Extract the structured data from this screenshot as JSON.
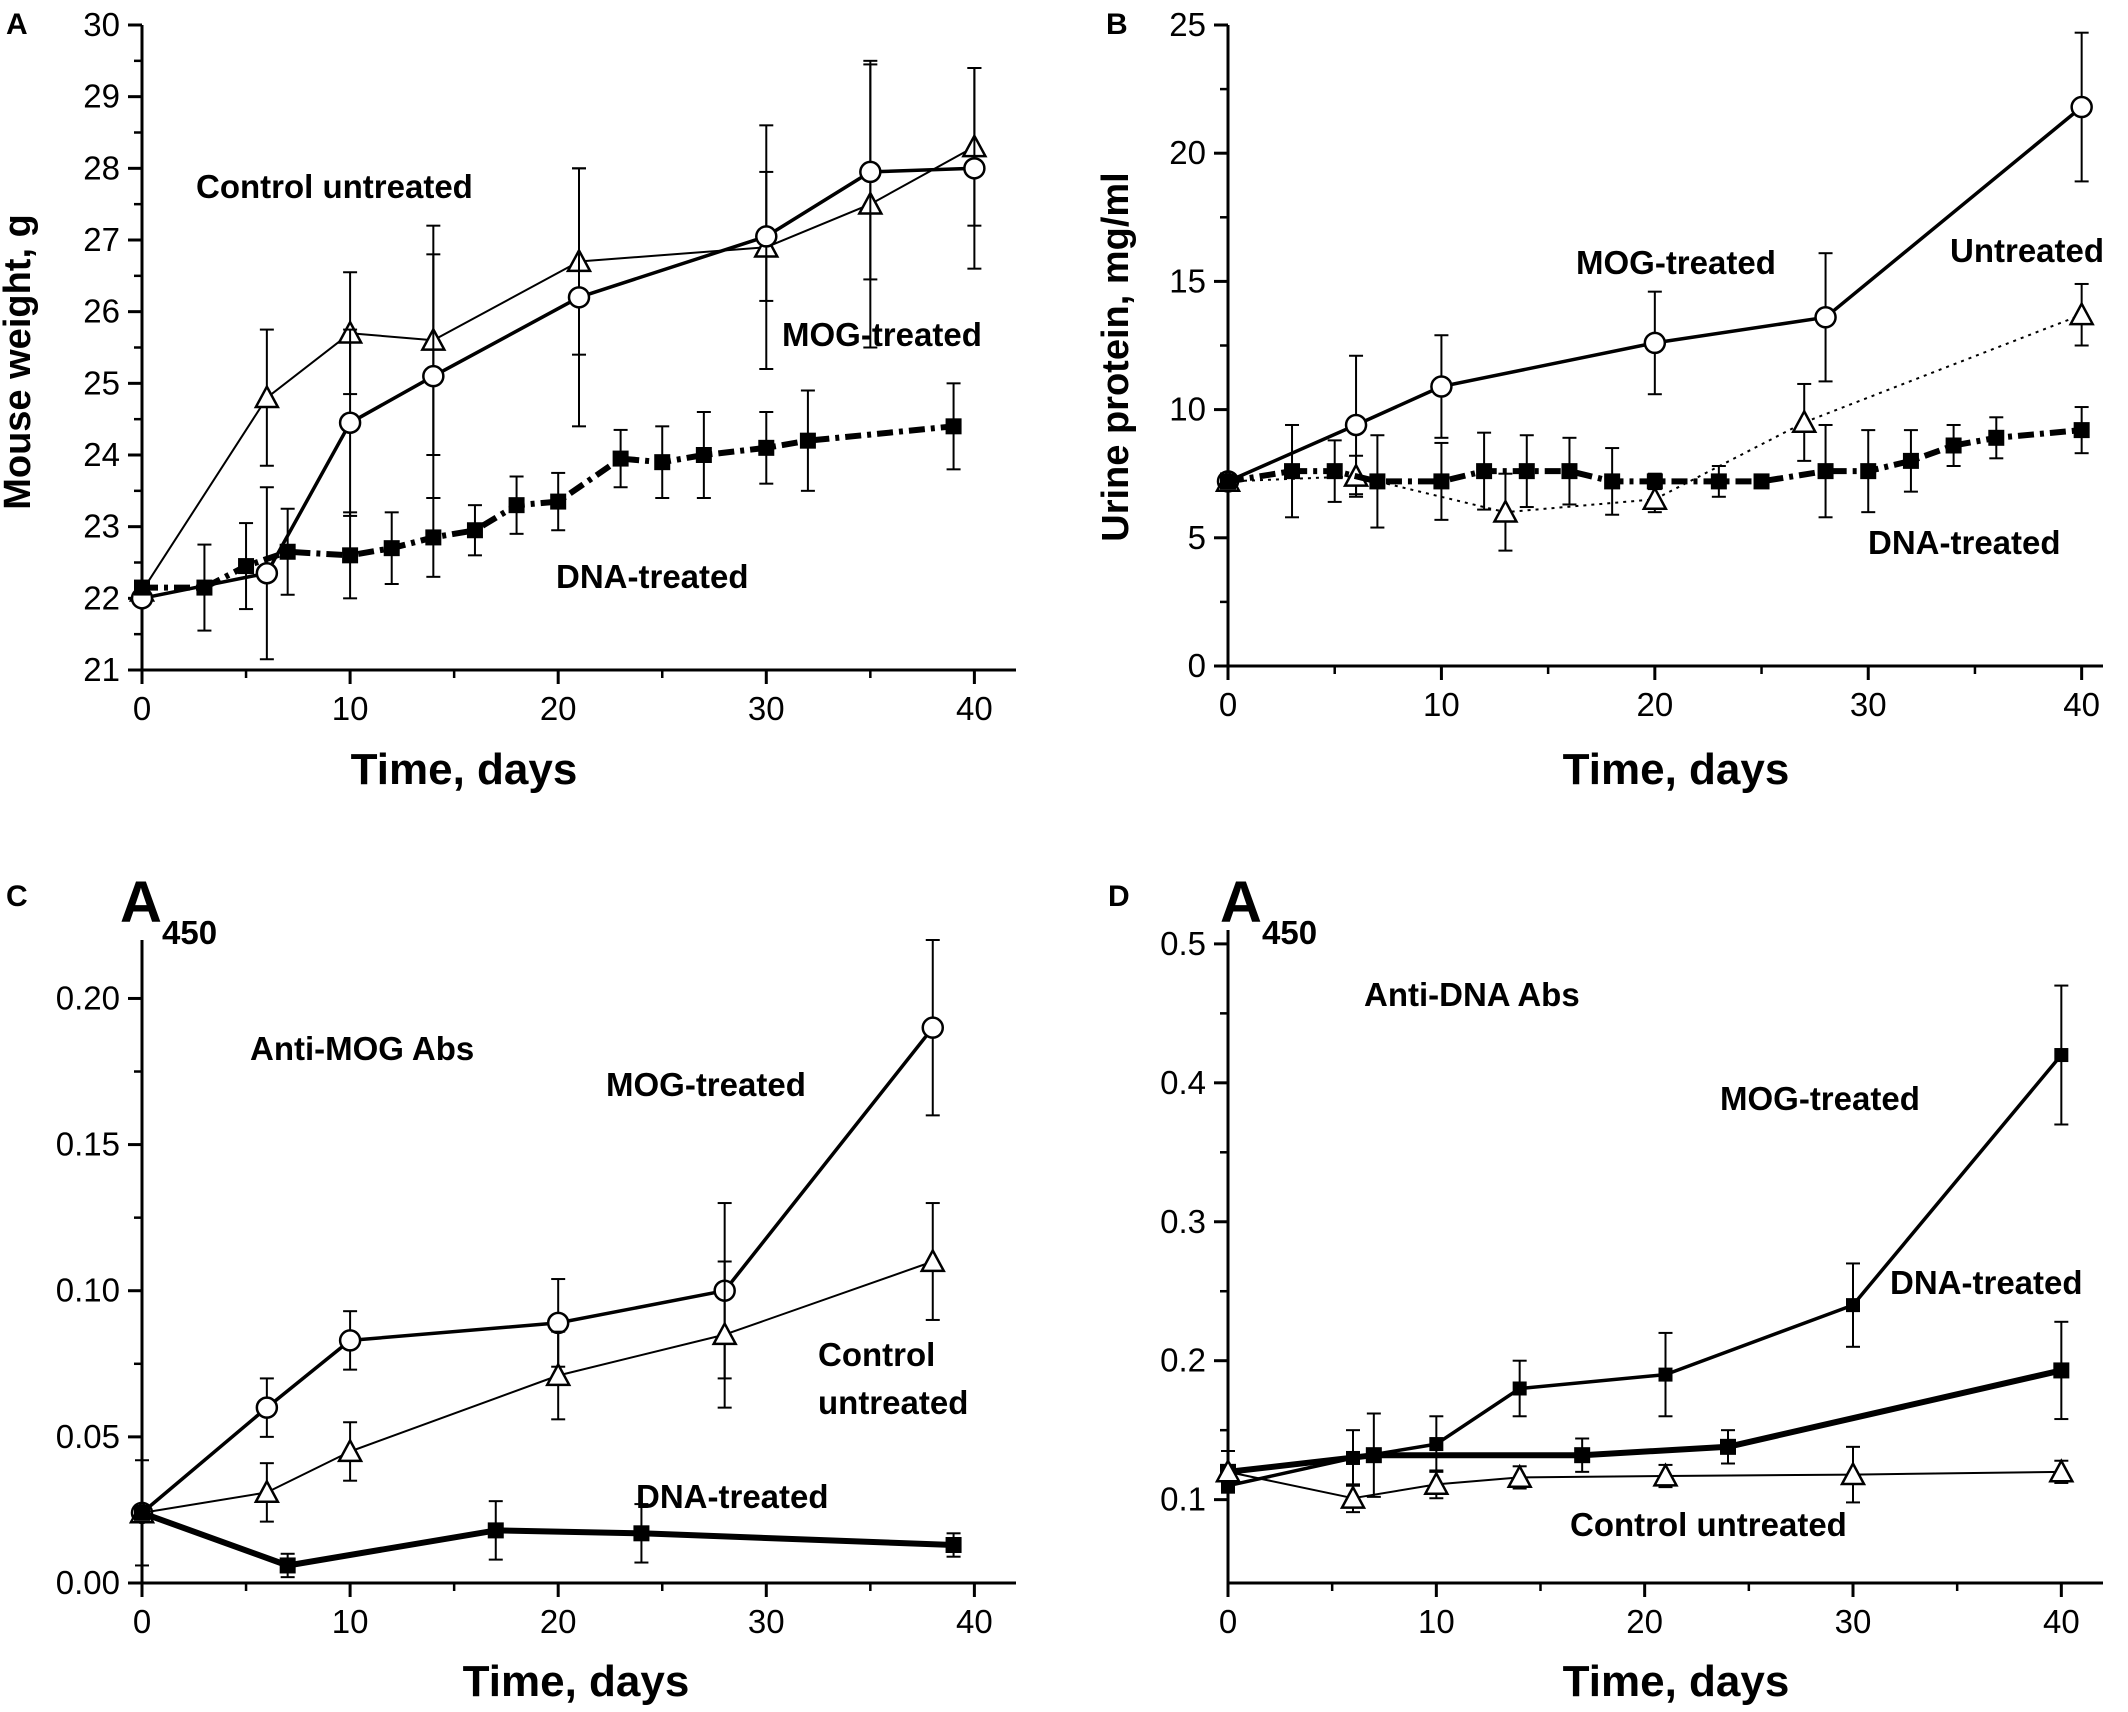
{
  "chart_data": [
    {
      "type": "line",
      "panel": "A",
      "ylabel": "Mouse weight, g",
      "xlabel": "Time, days",
      "xlim": [
        0,
        42
      ],
      "ylim": [
        21,
        30
      ],
      "xticks": [
        0,
        10,
        20,
        30,
        40
      ],
      "yticks": [
        21,
        22,
        23,
        24,
        25,
        26,
        27,
        28,
        29,
        30
      ],
      "series": [
        {
          "name": "Control untreated",
          "marker": "triangle",
          "line": "thin",
          "x": [
            0,
            6,
            10,
            14,
            21,
            30,
            35,
            40
          ],
          "y": [
            22.1,
            24.8,
            25.7,
            25.6,
            26.7,
            26.9,
            27.5,
            28.3
          ],
          "err": [
            0,
            0.95,
            0.85,
            1.6,
            1.3,
            1.7,
            2.0,
            1.1
          ]
        },
        {
          "name": "MOG-treated",
          "marker": "circle",
          "line": "medium",
          "x": [
            0,
            6,
            10,
            14,
            21,
            30,
            35,
            40
          ],
          "y": [
            22.0,
            22.35,
            24.45,
            25.1,
            26.2,
            27.05,
            27.95,
            28.0
          ],
          "err": [
            0,
            1.2,
            1.3,
            1.7,
            1.8,
            0.9,
            1.5,
            1.4
          ]
        },
        {
          "name": "DNA-treated",
          "marker": "square",
          "line": "bold-dash",
          "x": [
            0,
            3,
            5,
            7,
            10,
            12,
            14,
            16,
            18,
            20,
            23,
            25,
            27,
            30,
            32,
            39
          ],
          "y": [
            22.15,
            22.15,
            22.45,
            22.65,
            22.6,
            22.7,
            22.85,
            22.95,
            23.3,
            23.35,
            23.95,
            23.9,
            24.0,
            24.1,
            24.2,
            24.4
          ],
          "err": [
            0,
            0.6,
            0.6,
            0.6,
            0.6,
            0.5,
            0.55,
            0.35,
            0.4,
            0.4,
            0.4,
            0.5,
            0.6,
            0.5,
            0.7,
            0.6
          ]
        }
      ],
      "annotations": [
        "Control untreated",
        "MOG-treated",
        "DNA-treated"
      ]
    },
    {
      "type": "line",
      "panel": "B",
      "ylabel": "Urine protein, mg/ml",
      "xlabel": "Time, days",
      "xlim": [
        0,
        41
      ],
      "ylim": [
        0,
        25
      ],
      "xticks": [
        0,
        10,
        20,
        30,
        40
      ],
      "yticks": [
        0,
        5,
        10,
        15,
        20,
        25
      ],
      "series": [
        {
          "name": "MOG-treated",
          "marker": "circle",
          "line": "medium",
          "x": [
            0,
            6,
            10,
            20,
            28,
            40
          ],
          "y": [
            7.2,
            9.4,
            10.9,
            12.6,
            13.6,
            21.8
          ],
          "err": [
            0,
            2.7,
            2.0,
            2.0,
            2.5,
            2.9
          ]
        },
        {
          "name": "Untreated",
          "marker": "triangle",
          "line": "dotted",
          "x": [
            0,
            6,
            13,
            20,
            27,
            40
          ],
          "y": [
            7.2,
            7.4,
            6.0,
            6.5,
            9.5,
            13.7
          ],
          "err": [
            0,
            0.8,
            1.5,
            0.5,
            1.5,
            1.2
          ]
        },
        {
          "name": "DNA-treated",
          "marker": "square",
          "line": "bold-dash",
          "x": [
            0,
            3,
            5,
            7,
            10,
            12,
            14,
            16,
            18,
            20,
            23,
            25,
            28,
            30,
            32,
            34,
            36,
            40
          ],
          "y": [
            7.2,
            7.6,
            7.6,
            7.2,
            7.2,
            7.6,
            7.6,
            7.6,
            7.2,
            7.2,
            7.2,
            7.2,
            7.6,
            7.6,
            8.0,
            8.6,
            8.9,
            9.2
          ],
          "err": [
            0,
            1.8,
            1.2,
            1.8,
            1.5,
            1.5,
            1.4,
            1.3,
            1.3,
            0.3,
            0.6,
            0.2,
            1.8,
            1.6,
            1.2,
            0.8,
            0.8,
            0.9
          ]
        }
      ],
      "annotations": [
        "MOG-treated",
        "Untreated",
        "DNA-treated"
      ]
    },
    {
      "type": "line",
      "panel": "C",
      "ylabel_main": "A",
      "ylabel_sub": "450",
      "xlabel": "Time, days",
      "xlim": [
        0,
        42
      ],
      "ylim": [
        0,
        0.22
      ],
      "xticks": [
        0,
        10,
        20,
        30,
        40
      ],
      "yticks": [
        0.0,
        0.05,
        0.1,
        0.15,
        0.2
      ],
      "ytick_labels": [
        "0.00",
        "0.05",
        "0.10",
        "0.15",
        "0.20"
      ],
      "series": [
        {
          "name": "MOG-treated",
          "marker": "circle",
          "line": "medium",
          "x": [
            0,
            6,
            10,
            20,
            28,
            38
          ],
          "y": [
            0.024,
            0.06,
            0.083,
            0.089,
            0.1,
            0.19
          ],
          "err": [
            0.018,
            0.01,
            0.01,
            0.015,
            0.03,
            0.03
          ]
        },
        {
          "name": "Control untreated",
          "marker": "triangle",
          "line": "thin",
          "x": [
            0,
            6,
            10,
            20,
            28,
            38
          ],
          "y": [
            0.024,
            0.031,
            0.045,
            0.071,
            0.085,
            0.11
          ],
          "err": [
            0,
            0.01,
            0.01,
            0.015,
            0.025,
            0.02
          ]
        },
        {
          "name": "DNA-treated",
          "marker": "square",
          "line": "bold",
          "x": [
            0,
            7,
            17,
            24,
            39
          ],
          "y": [
            0.024,
            0.006,
            0.018,
            0.017,
            0.013
          ],
          "err": [
            0,
            0.004,
            0.01,
            0.01,
            0.004
          ]
        }
      ],
      "annotations": [
        "Anti-MOG Abs",
        "MOG-treated",
        "Control",
        "untreated",
        "DNA-treated"
      ]
    },
    {
      "type": "line",
      "panel": "D",
      "ylabel_main": "A",
      "ylabel_sub": "450",
      "xlabel": "Time, days",
      "xlim": [
        0,
        42
      ],
      "ylim": [
        0.04,
        0.51
      ],
      "xticks": [
        0,
        10,
        20,
        30,
        40
      ],
      "yticks": [
        0.1,
        0.2,
        0.3,
        0.4,
        0.5
      ],
      "ytick_labels": [
        "0.1",
        "0.2",
        "0.3",
        "0.4",
        "0.5"
      ],
      "series": [
        {
          "name": "MOG-treated",
          "marker": "square-small",
          "line": "medium",
          "x": [
            0,
            6,
            10,
            14,
            21,
            30,
            40
          ],
          "y": [
            0.11,
            0.13,
            0.14,
            0.18,
            0.19,
            0.24,
            0.42
          ],
          "err": [
            0,
            0.02,
            0.02,
            0.02,
            0.03,
            0.03,
            0.05
          ]
        },
        {
          "name": "DNA-treated",
          "marker": "square",
          "line": "bold",
          "x": [
            0,
            7,
            17,
            24,
            40
          ],
          "y": [
            0.12,
            0.132,
            0.132,
            0.138,
            0.193
          ],
          "err": [
            0,
            0.03,
            0.012,
            0.012,
            0.035
          ]
        },
        {
          "name": "Control untreated",
          "marker": "triangle",
          "line": "thin",
          "x": [
            0,
            6,
            10,
            14,
            21,
            30,
            40
          ],
          "y": [
            0.12,
            0.101,
            0.111,
            0.116,
            0.117,
            0.118,
            0.12
          ],
          "err": [
            0.015,
            0.01,
            0.01,
            0.008,
            0.008,
            0.02,
            0.008
          ]
        }
      ],
      "annotations": [
        "Anti-DNA Abs",
        "MOG-treated",
        "DNA-treated",
        "Control untreated"
      ]
    }
  ]
}
